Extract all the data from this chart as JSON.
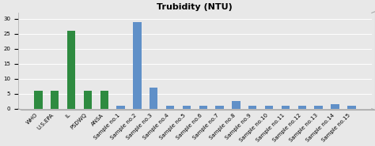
{
  "categories": [
    "WHO",
    "U.S.EPA",
    "IL",
    "PSDWQ",
    "ANSA",
    "Sample no.1",
    "Sample no.2",
    "Sample no.3",
    "Sample no.4",
    "Sample no.5",
    "Sample no.6",
    "Sample no.7",
    "Sample no.8",
    "Sample no.9",
    "Sample no.10",
    "Sample no.11",
    "Sample no.12",
    "Sample no.13",
    "Sample no.14",
    "Sample no.15"
  ],
  "values": [
    6,
    6,
    26,
    6,
    6,
    1,
    29,
    7,
    1,
    1,
    1,
    1,
    2.5,
    1,
    1,
    1,
    1,
    1,
    1.5,
    1
  ],
  "bar_colors": [
    "#2e8b40",
    "#2e8b40",
    "#2e8b40",
    "#2e8b40",
    "#2e8b40",
    "#6090c8",
    "#6090c8",
    "#6090c8",
    "#6090c8",
    "#6090c8",
    "#6090c8",
    "#6090c8",
    "#6090c8",
    "#6090c8",
    "#6090c8",
    "#6090c8",
    "#6090c8",
    "#6090c8",
    "#6090c8",
    "#6090c8"
  ],
  "title": "Trubidity (NTU)",
  "ylim": [
    0,
    32
  ],
  "yticks": [
    0,
    5,
    10,
    15,
    20,
    25,
    30
  ],
  "title_fontsize": 8,
  "tick_fontsize": 5,
  "background_color": "#e8e8e8",
  "plot_bg_color": "#e8e8e8"
}
